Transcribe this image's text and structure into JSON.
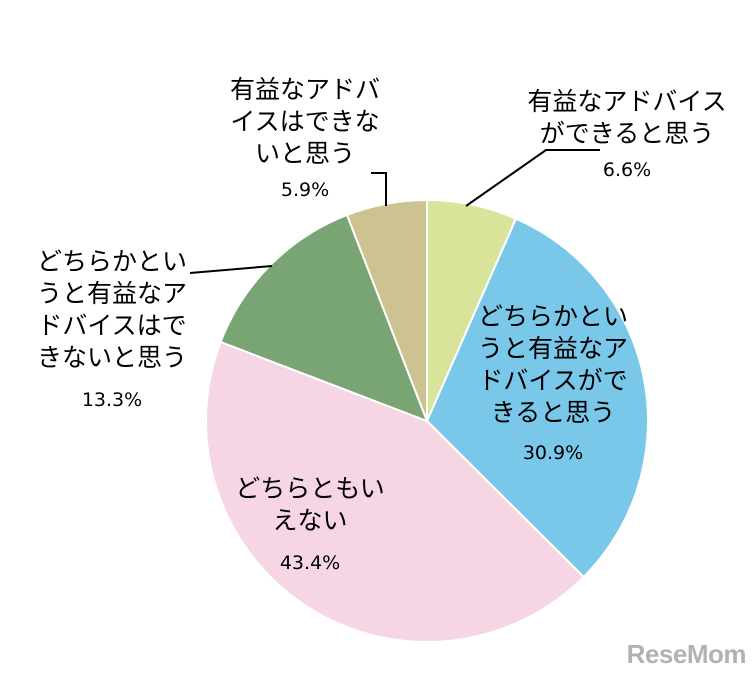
{
  "chart_data": {
    "type": "pie",
    "slices": [
      {
        "label_lines": [
          "有益なアドバイス",
          "ができると思う"
        ],
        "value": 6.6,
        "pct": "6.6%",
        "color": "#d7e49a"
      },
      {
        "label_lines": [
          "どちらかとい",
          "うと有益なア",
          "ドバイスがで",
          "きると思う"
        ],
        "value": 30.9,
        "pct": "30.9%",
        "color": "#79c7e9"
      },
      {
        "label_lines": [
          "どちらともい",
          "えない"
        ],
        "value": 43.4,
        "pct": "43.4%",
        "color": "#f6d6e5"
      },
      {
        "label_lines": [
          "どちらかとい",
          "うと有益なア",
          "ドバイスはで",
          "きないと思う"
        ],
        "value": 13.3,
        "pct": "13.3%",
        "color": "#78a573"
      },
      {
        "label_lines": [
          "有益なアドバ",
          "イスはできな",
          "いと思う"
        ],
        "value": 5.9,
        "pct": "5.9%",
        "color": "#cdc392"
      }
    ]
  },
  "watermark": "ReseMom"
}
